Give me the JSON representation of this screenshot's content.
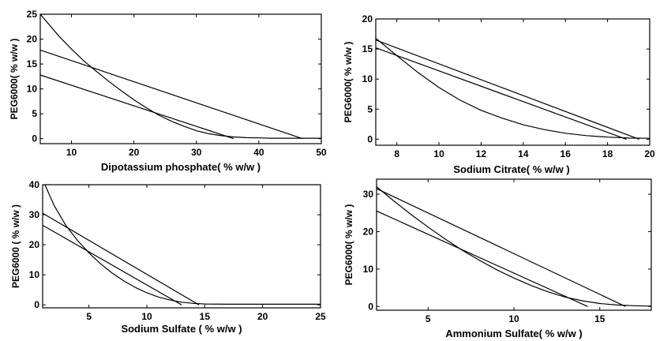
{
  "chart_data": [
    {
      "type": "line",
      "xlabel": "Dipotassium phosphate( % w/w )",
      "ylabel": "PEG6000( % w/w )",
      "xlim": [
        5,
        50
      ],
      "ylim": [
        -1,
        25
      ],
      "xticks": [
        10,
        20,
        30,
        40,
        50
      ],
      "yticks": [
        0,
        5,
        10,
        15,
        20,
        25
      ],
      "series": [
        {
          "kind": "curve",
          "x": [
            5,
            8,
            10,
            12,
            14,
            16,
            18,
            20,
            22,
            24,
            26,
            28,
            30,
            32,
            34,
            36,
            38,
            40,
            42,
            44,
            46,
            48,
            50
          ],
          "y": [
            25,
            20.6,
            18,
            15.6,
            13.5,
            11.5,
            9.6,
            7.8,
            6.2,
            4.7,
            3.5,
            2.5,
            1.6,
            1,
            0.6,
            0.35,
            0.2,
            0.15,
            0.1,
            0.1,
            0.1,
            0.1,
            0.1
          ]
        },
        {
          "kind": "tie-line",
          "x": [
            5,
            47
          ],
          "y": [
            17.8,
            0
          ]
        },
        {
          "kind": "tie-line",
          "x": [
            5,
            36
          ],
          "y": [
            12.8,
            0
          ]
        }
      ]
    },
    {
      "type": "line",
      "xlabel": "Sodium Citrate( % w/w )",
      "ylabel": "PEG6000( % w/w )",
      "xlim": [
        7,
        20
      ],
      "ylim": [
        -1,
        20
      ],
      "xticks": [
        8,
        10,
        12,
        14,
        16,
        18,
        20
      ],
      "yticks": [
        0,
        5,
        10,
        15,
        20
      ],
      "series": [
        {
          "kind": "curve",
          "x": [
            7,
            8,
            9,
            10,
            11,
            12,
            13,
            14,
            15,
            16,
            17,
            18,
            19,
            20
          ],
          "y": [
            16.8,
            13.9,
            11.1,
            8.6,
            6.5,
            4.8,
            3.5,
            2.4,
            1.6,
            1.0,
            0.6,
            0.35,
            0.2,
            0.15
          ]
        },
        {
          "kind": "tie-line",
          "x": [
            7,
            19.5
          ],
          "y": [
            16.5,
            0
          ]
        },
        {
          "kind": "tie-line",
          "x": [
            7,
            18.9
          ],
          "y": [
            15.2,
            0
          ]
        }
      ]
    },
    {
      "type": "line",
      "xlabel": "Sodium Sulfate ( % w/w )",
      "ylabel": "PEG6000 ( % w/w )",
      "xlim": [
        1,
        25
      ],
      "ylim": [
        -1,
        40
      ],
      "xticks": [
        5,
        10,
        15,
        20,
        25
      ],
      "yticks": [
        0,
        10,
        20,
        30,
        40
      ],
      "series": [
        {
          "kind": "curve",
          "x": [
            1.2,
            2,
            3,
            4,
            5,
            6,
            7,
            8,
            9,
            10,
            11,
            12,
            13,
            14,
            15,
            17,
            20,
            23,
            25
          ],
          "y": [
            40,
            33,
            26.5,
            21.5,
            17.3,
            13.7,
            10.6,
            8.0,
            5.8,
            4.0,
            2.6,
            1.6,
            0.9,
            0.5,
            0.3,
            0.2,
            0.2,
            0.2,
            0.2
          ]
        },
        {
          "kind": "tie-line",
          "x": [
            1,
            14.5
          ],
          "y": [
            30.5,
            0
          ]
        },
        {
          "kind": "tie-line",
          "x": [
            1,
            13
          ],
          "y": [
            26.5,
            0
          ]
        }
      ]
    },
    {
      "type": "line",
      "xlabel": "Ammonium Sulfate( % w/w )",
      "ylabel": "PEG6000( % w/w )",
      "xlim": [
        2,
        18
      ],
      "ylim": [
        -1,
        34
      ],
      "xticks": [
        5,
        10,
        15
      ],
      "yticks": [
        0,
        10,
        20,
        30
      ],
      "series": [
        {
          "kind": "curve",
          "x": [
            2,
            3,
            4,
            5,
            6,
            7,
            8,
            9,
            10,
            11,
            12,
            13,
            14,
            15,
            16,
            17,
            18
          ],
          "y": [
            32,
            28.2,
            24.6,
            21.2,
            18.0,
            15.0,
            12.3,
            9.8,
            7.6,
            5.6,
            3.9,
            2.5,
            1.5,
            0.8,
            0.4,
            0.2,
            0.1
          ]
        },
        {
          "kind": "tie-line",
          "x": [
            2,
            16.5
          ],
          "y": [
            31.5,
            0
          ]
        },
        {
          "kind": "tie-line",
          "x": [
            2,
            14.3
          ],
          "y": [
            25.5,
            0
          ]
        }
      ]
    }
  ]
}
